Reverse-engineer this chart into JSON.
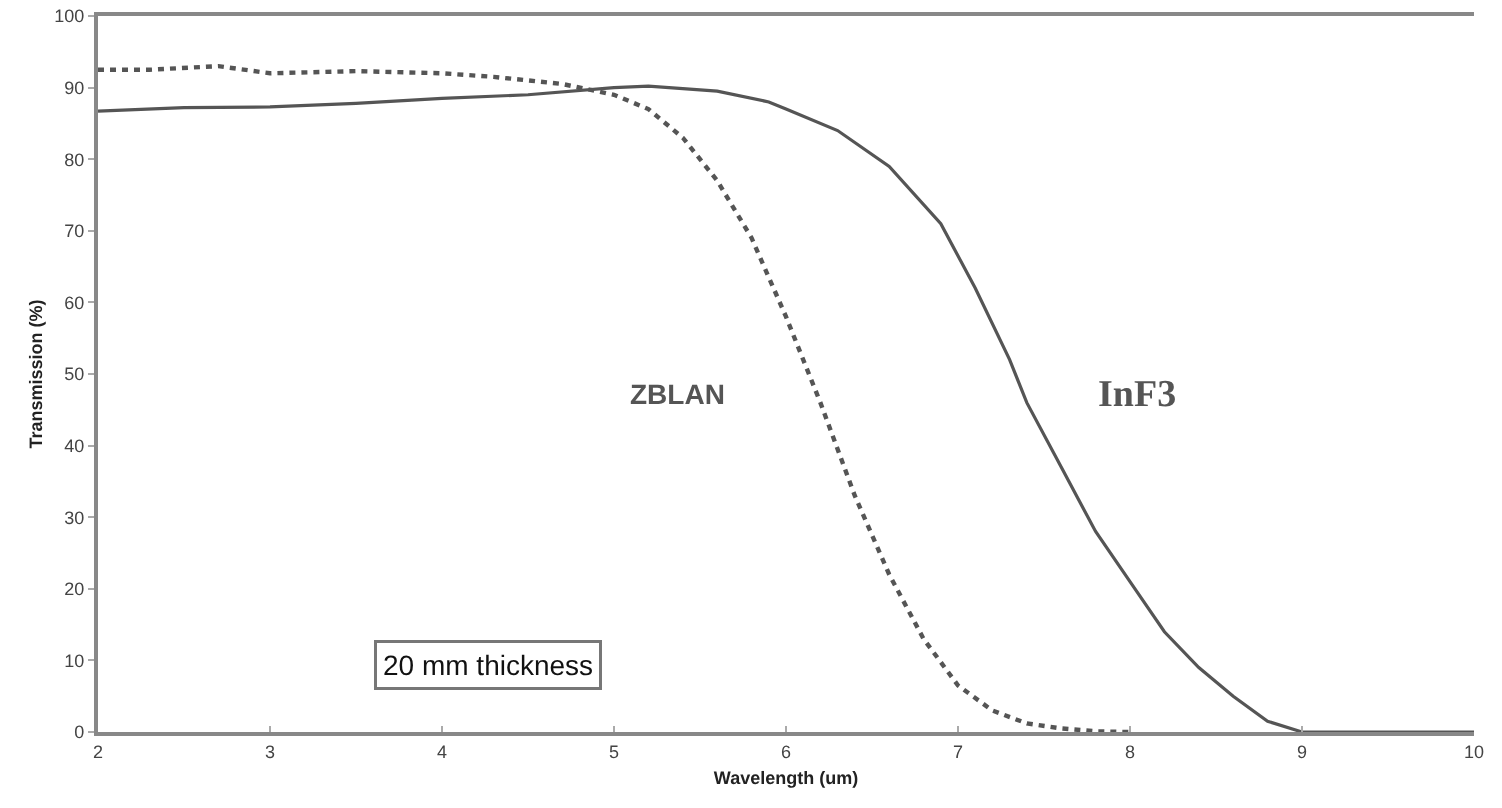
{
  "chart_data": {
    "type": "line",
    "xlabel": "Wavelength (um)",
    "ylabel": "Transmission (%)",
    "xlim": [
      2,
      10
    ],
    "xticks": [
      2,
      3,
      4,
      5,
      6,
      7,
      8,
      9,
      10
    ],
    "ylim": [
      0,
      100
    ],
    "yticks": [
      0,
      10,
      20,
      30,
      40,
      50,
      60,
      70,
      80,
      90,
      100
    ],
    "grid": false,
    "legend": false,
    "marker": "none",
    "series": [
      {
        "name": "ZBLAN",
        "color": "#555555",
        "line_style": "dotted",
        "x": [
          2,
          2.3,
          2.7,
          3,
          3.5,
          4,
          4.3,
          4.7,
          5,
          5.2,
          5.4,
          5.6,
          5.8,
          6,
          6.2,
          6.4,
          6.6,
          6.8,
          7,
          7.2,
          7.4,
          7.6,
          7.8,
          8
        ],
        "values": [
          92.5,
          92.5,
          93,
          92,
          92.3,
          92,
          91.5,
          90.5,
          89,
          87,
          83,
          77,
          69,
          58,
          46,
          33,
          22,
          13,
          6.5,
          3,
          1.2,
          0.5,
          0.1,
          0
        ]
      },
      {
        "name": "InF3",
        "color": "#555555",
        "line_style": "solid",
        "x": [
          2,
          2.5,
          3,
          3.5,
          4,
          4.5,
          5,
          5.2,
          5.6,
          5.9,
          6,
          6.3,
          6.6,
          6.9,
          7.1,
          7.3,
          7.4,
          7.6,
          7.8,
          8,
          8.2,
          8.4,
          8.6,
          8.8,
          9,
          10
        ],
        "values": [
          86.7,
          87.2,
          87.3,
          87.8,
          88.5,
          89,
          90,
          90.2,
          89.5,
          88,
          87,
          84,
          79,
          71,
          62,
          52,
          46,
          37,
          28,
          21,
          14,
          9,
          5,
          1.5,
          0,
          0
        ]
      }
    ],
    "annotations": [
      "20 mm thickness"
    ]
  }
}
